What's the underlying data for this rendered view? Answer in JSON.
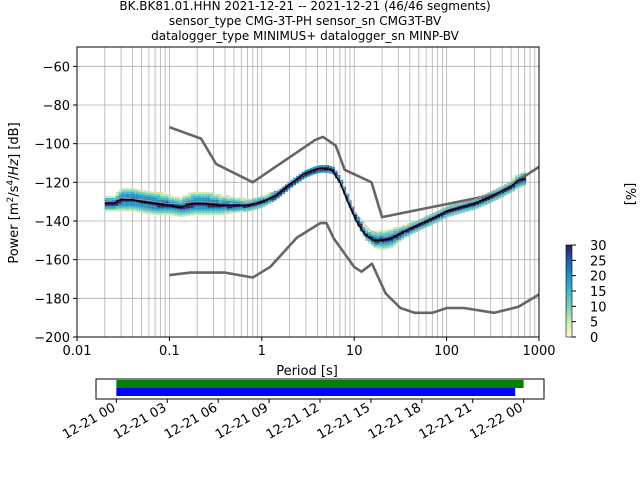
{
  "title_lines": [
    "BK.BK81.01.HHN   2021-12-21 -- 2021-12-21  (46/46 segments)",
    "sensor_type CMG-3T-PH sensor_sn CMG3T-BV",
    "datalogger_type MINIMUS+ datalogger_sn MINP-BV"
  ],
  "colorbar": {
    "label": "[%]",
    "ticks": [
      "0",
      "5",
      "10",
      "15",
      "20",
      "25",
      "30"
    ],
    "range": [
      0,
      30
    ],
    "colors": [
      "#ffffcc",
      "#c7e9b4",
      "#7fcdbb",
      "#41b6c4",
      "#1d91c0",
      "#225ea8",
      "#2c1e5f"
    ]
  },
  "timeline": {
    "tick_labels": [
      "12-21 00",
      "12-21 03",
      "12-21 06",
      "12-21 09",
      "12-21 12",
      "12-21 15",
      "12-21 18",
      "12-21 21",
      "12-22 00"
    ],
    "range_hours": [
      -1.2,
      25.2
    ],
    "bars": [
      {
        "name": "data coverage",
        "start_h": 0.0,
        "end_h": 24.0,
        "color": "#008000"
      },
      {
        "name": "processed segments",
        "start_h": 0.0,
        "end_h": 23.5,
        "color": "#0000ff"
      }
    ]
  },
  "chart_data": {
    "type": "heatmap",
    "title": "BK.BK81.01.HHN   2021-12-21 -- 2021-12-21  (46/46 segments)",
    "xlabel": "Period [s]",
    "ylabel": "Power [m²/s⁴/Hz] [dB]",
    "xscale": "log",
    "xlim": [
      0.01,
      1000
    ],
    "ylim": [
      -200,
      -50
    ],
    "x_tick_labels": [
      "0.01",
      "0.1",
      "1",
      "10",
      "100",
      "1000"
    ],
    "y_ticks": [
      -60,
      -80,
      -100,
      -120,
      -140,
      -160,
      -180,
      -200
    ],
    "grid": true,
    "model_high": {
      "period": [
        0.1,
        0.22,
        0.32,
        0.8,
        3.8,
        4.6,
        6.3,
        7.9,
        15.4,
        20,
        354.8,
        1000
      ],
      "db": [
        -91.5,
        -97.4,
        -110.5,
        -120,
        -98,
        -96.5,
        -101,
        -113.5,
        -120,
        -138,
        -126,
        -112
      ]
    },
    "model_low": {
      "period": [
        0.1,
        0.17,
        0.4,
        0.8,
        1.24,
        2.4,
        4.3,
        5,
        6,
        10,
        12,
        15.6,
        21.9,
        31.6,
        45,
        70,
        101,
        154,
        328,
        600,
        1000
      ],
      "db": [
        -168,
        -166.7,
        -166.7,
        -169.2,
        -163.7,
        -148.6,
        -141.1,
        -141.1,
        -149,
        -163.8,
        -166.2,
        -162.1,
        -177.5,
        -185,
        -187.5,
        -187.5,
        -185,
        -185,
        -187.5,
        -184.4,
        -178
      ]
    },
    "mode_curve": {
      "period": [
        0.02,
        0.025,
        0.03,
        0.04,
        0.05,
        0.07,
        0.1,
        0.13,
        0.18,
        0.25,
        0.35,
        0.5,
        0.7,
        1.0,
        1.4,
        2.0,
        2.8,
        3.5,
        4.2,
        5.0,
        5.8,
        7.0,
        8.5,
        10.5,
        13,
        16,
        20,
        25,
        30,
        40,
        55,
        75,
        100,
        140,
        200,
        280,
        380,
        500,
        600,
        700
      ],
      "db": [
        -131,
        -131,
        -129,
        -129,
        -130,
        -131,
        -132,
        -133,
        -131,
        -131,
        -132,
        -132,
        -132,
        -130,
        -127,
        -121,
        -116,
        -114,
        -113,
        -113,
        -114,
        -120,
        -130,
        -140,
        -147,
        -150,
        -150,
        -149,
        -147,
        -144,
        -141,
        -138,
        -135,
        -133,
        -131,
        -128,
        -125,
        -122,
        -119,
        -118
      ]
    },
    "mean_curve": {
      "period": [
        0.02,
        0.03,
        0.05,
        0.1,
        0.2,
        0.5,
        1.0,
        2.0,
        3.5,
        5.0,
        7.0,
        10,
        15,
        22,
        35,
        60,
        100,
        200,
        400,
        700
      ],
      "db": [
        -130,
        -128,
        -129,
        -131,
        -130,
        -131,
        -130,
        -120,
        -114,
        -113,
        -118,
        -135,
        -145,
        -148,
        -144,
        -139,
        -134,
        -129,
        -123,
        -118
      ]
    },
    "ppsd_band": {
      "period": [
        0.02,
        0.025,
        0.03,
        0.04,
        0.05,
        0.07,
        0.1,
        0.13,
        0.18,
        0.25,
        0.35,
        0.5,
        0.7,
        1.0,
        1.4,
        2.0,
        2.8,
        3.5,
        4.2,
        5.0,
        5.8,
        7.0,
        8.5,
        10.5,
        13,
        16,
        20,
        25,
        30,
        40,
        55,
        75,
        100,
        140,
        200,
        280,
        380,
        500,
        600,
        700
      ],
      "half_width_db": [
        4,
        4,
        6,
        6,
        6,
        6,
        5,
        5,
        6,
        6,
        5,
        4,
        3,
        3,
        2,
        2,
        2,
        2,
        2,
        2,
        2,
        2,
        2,
        2,
        3,
        4,
        5,
        5,
        4,
        3,
        3,
        3,
        3,
        3,
        3,
        3,
        3,
        3,
        4,
        4
      ]
    }
  }
}
